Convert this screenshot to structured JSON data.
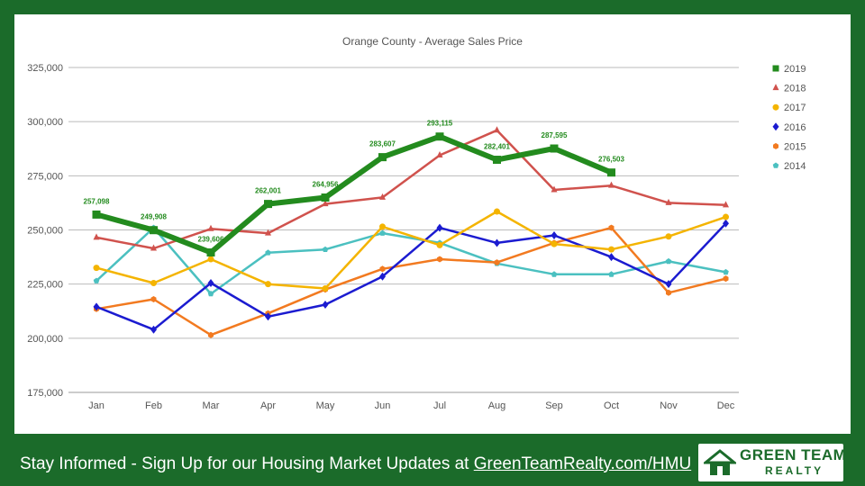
{
  "chart_data": {
    "type": "line",
    "title": "Orange County - Average Sales Price",
    "xlabel": "",
    "ylabel": "",
    "categories": [
      "Jan",
      "Feb",
      "Mar",
      "Apr",
      "May",
      "Jun",
      "Jul",
      "Aug",
      "Sep",
      "Oct",
      "Nov",
      "Dec"
    ],
    "ylim": [
      175000,
      325000
    ],
    "yticks": [
      175000,
      200000,
      225000,
      250000,
      275000,
      300000,
      325000
    ],
    "ytick_labels": [
      "175,000",
      "200,000",
      "225,000",
      "250,000",
      "275,000",
      "300,000",
      "325,000"
    ],
    "grid": true,
    "legend_position": "right",
    "series": [
      {
        "name": "2019",
        "color": "#238b1e",
        "marker": "square",
        "values": [
          257098,
          249908,
          239606,
          262001,
          264956,
          283607,
          293115,
          282401,
          287595,
          276503,
          null,
          null
        ],
        "data_labels": [
          "257,098",
          "249,908",
          "239,606",
          "262,001",
          "264,956",
          "283,607",
          "293,115",
          "282,401",
          "287,595",
          "276,503"
        ]
      },
      {
        "name": "2018",
        "color": "#d0524d",
        "marker": "triangle",
        "values": [
          246500,
          241500,
          250500,
          248500,
          262000,
          265000,
          284500,
          296000,
          268500,
          270500,
          262500,
          261500
        ]
      },
      {
        "name": "2017",
        "color": "#f4b400",
        "marker": "circle",
        "values": [
          232500,
          225500,
          236500,
          225000,
          223000,
          251500,
          243000,
          258500,
          243500,
          241000,
          247000,
          256000
        ]
      },
      {
        "name": "2016",
        "color": "#1b1bd0",
        "marker": "diamond",
        "values": [
          214500,
          204000,
          225500,
          210000,
          215500,
          228500,
          251000,
          244000,
          247500,
          237500,
          225000,
          253000
        ]
      },
      {
        "name": "2015",
        "color": "#f27a20",
        "marker": "hexagon",
        "values": [
          213500,
          218000,
          201500,
          211500,
          222500,
          232000,
          236500,
          235000,
          244000,
          251000,
          221000,
          227500
        ]
      },
      {
        "name": "2014",
        "color": "#4bc0c0",
        "marker": "pentagon",
        "values": [
          226500,
          251000,
          220500,
          239500,
          241000,
          248500,
          244000,
          234500,
          229500,
          229500,
          235500,
          230500
        ]
      }
    ]
  },
  "footer": {
    "text": "Stay Informed - Sign Up for our Housing Market Updates at ",
    "link": "GreenTeamRealty.com/HMU"
  },
  "logo": {
    "word1": "GREEN TEAM",
    "word2": "REALTY"
  },
  "colors": {
    "background": "#1b6b2a",
    "panel": "#ffffff"
  }
}
